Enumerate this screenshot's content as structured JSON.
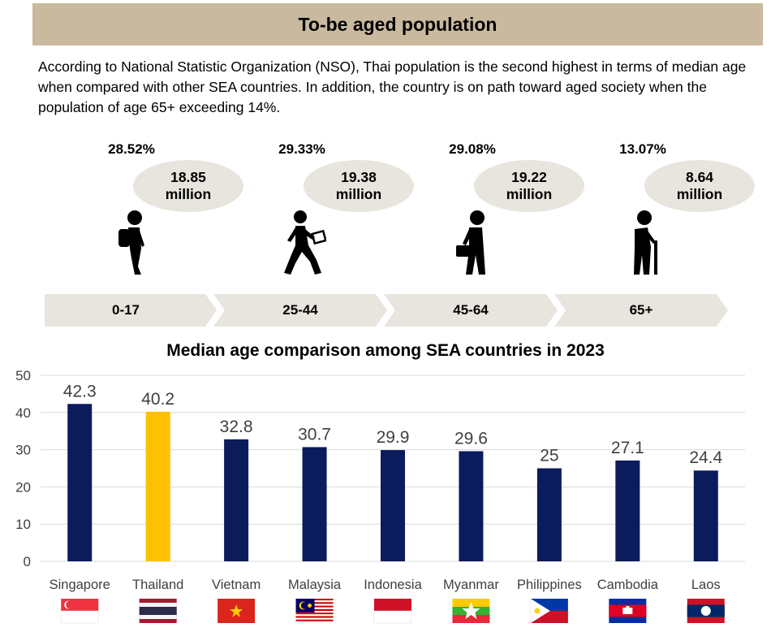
{
  "header": {
    "title": "To-be aged population"
  },
  "intro": "According to National Statistic Organization (NSO), Thai population is the second highest in terms of median age when compared with other SEA countries. In addition, the country is on path toward aged society when the population of age 65+ exceeding 14%.",
  "age_groups": [
    {
      "range": "0-17",
      "percent": "28.52%",
      "pop_value": "18.85",
      "pop_unit": "million",
      "icon": "child-backpack-icon"
    },
    {
      "range": "25-44",
      "percent": "29.33%",
      "pop_value": "19.38",
      "pop_unit": "million",
      "icon": "walking-worker-icon"
    },
    {
      "range": "45-64",
      "percent": "29.08%",
      "pop_value": "19.22",
      "pop_unit": "million",
      "icon": "adult-briefcase-icon"
    },
    {
      "range": "65+",
      "percent": "13.07%",
      "pop_value": "8.64",
      "pop_unit": "million",
      "icon": "elderly-cane-icon"
    }
  ],
  "chart_data": {
    "type": "bar",
    "title": "Median age comparison among SEA countries in 2023",
    "categories": [
      "Singapore",
      "Thailand",
      "Vietnam",
      "Malaysia",
      "Indonesia",
      "Myanmar",
      "Philippines",
      "Cambodia",
      "Laos"
    ],
    "values": [
      42.3,
      40.2,
      32.8,
      30.7,
      29.9,
      29.6,
      25,
      27.1,
      24.4
    ],
    "data_labels": [
      "42.3",
      "40.2",
      "32.8",
      "30.7",
      "29.9",
      "29.6",
      "25",
      "27.1",
      "24.4"
    ],
    "ylim": [
      0,
      50
    ],
    "yticks": [
      "0",
      "10",
      "20",
      "30",
      "40",
      "50"
    ],
    "grid": true,
    "colors": {
      "default": "#0b1b5c",
      "highlight": "#ffc000",
      "highlight_category": "Thailand",
      "gridline": "#d9d9d9"
    },
    "flags": [
      "singapore-flag-icon",
      "thailand-flag-icon",
      "vietnam-flag-icon",
      "malaysia-flag-icon",
      "indonesia-flag-icon",
      "myanmar-flag-icon",
      "philippines-flag-icon",
      "cambodia-flag-icon",
      "laos-flag-icon"
    ]
  }
}
